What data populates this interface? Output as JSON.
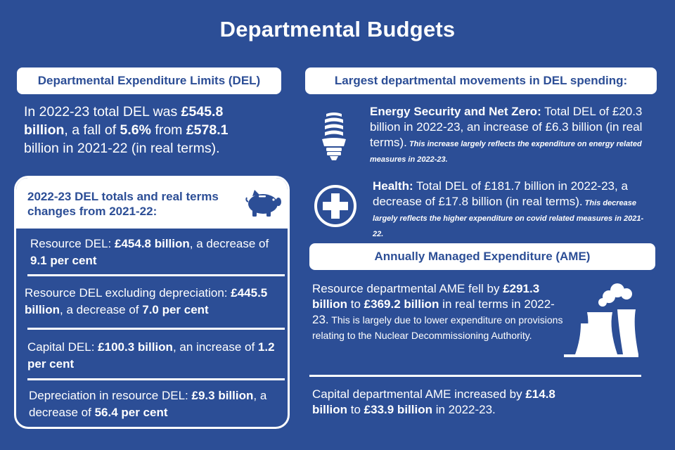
{
  "title": "Departmental Budgets",
  "del_header": "Departmental Expenditure Limits (DEL)",
  "del_summary": {
    "t1": "In 2022-23 total DEL was ",
    "b1": "£545.8 billion",
    "t2": ", a fall of ",
    "b2": "5.6%",
    "t3": " from ",
    "b3": "£578.1",
    "t4": " billion in 2021-22 (in real terms)."
  },
  "panel": {
    "title": "2022-23 DEL totals and real terms changes from 2021-22:",
    "icon": "piggy-bank-icon",
    "items": [
      {
        "t1": "Resource DEL: ",
        "b1": "£454.8 billion",
        "t2": ", a decrease of ",
        "b2": "9.1 per cent",
        "t3": ""
      },
      {
        "t1": "Resource DEL excluding depreciation: ",
        "b1": "£445.5 billion",
        "t2": ", a decrease of ",
        "b2": "7.0 per cent",
        "t3": ""
      },
      {
        "t1": "Capital DEL: ",
        "b1": "£100.3 billion",
        "t2": ", an increase of ",
        "b2": "1.2 per cent",
        "t3": ""
      },
      {
        "t1": "Depreciation in resource DEL: ",
        "b1": "£9.3 billion",
        "t2": ", a decrease of ",
        "b2": "56.4 per cent",
        "t3": ""
      }
    ]
  },
  "movements_header": "Largest departmental movements in DEL spending:",
  "movements": [
    {
      "icon": "lightbulb-icon",
      "dept": "Energy Security and Net Zero:",
      "text": " Total DEL of £20.3 billion in 2022-23, an increase of £6.3 billion (in real terms).",
      "note": " This increase largely reflects the expenditure on energy related measures in 2022-23."
    },
    {
      "icon": "health-cross-icon",
      "dept": "Health:",
      "text": " Total DEL of £181.7 billion in 2022-23, a decrease of £17.8 billion (in real terms).",
      "note": " This decrease largely reflects the higher expenditure on covid related measures in 2021-22."
    }
  ],
  "ame_header": "Annually Managed Expenditure (AME)",
  "ame_resource": {
    "t1": "Resource departmental AME fell by ",
    "b1": "£291.3 billion",
    "t2": " to ",
    "b2": "£369.2 billion",
    "t3": " in real terms in 2022-23.",
    "small": " This is largely due to lower expenditure on provisions relating to the Nuclear Decommissioning Authority.",
    "icon": "cooling-tower-icon"
  },
  "ame_capital": {
    "t1": "Capital departmental AME increased by ",
    "b1": "£14.8 billion",
    "t2": " to ",
    "b2": "£33.9 billion",
    "t3": " in 2022-23."
  },
  "colors": {
    "background": "#2c4e96",
    "panel": "#ffffff"
  }
}
